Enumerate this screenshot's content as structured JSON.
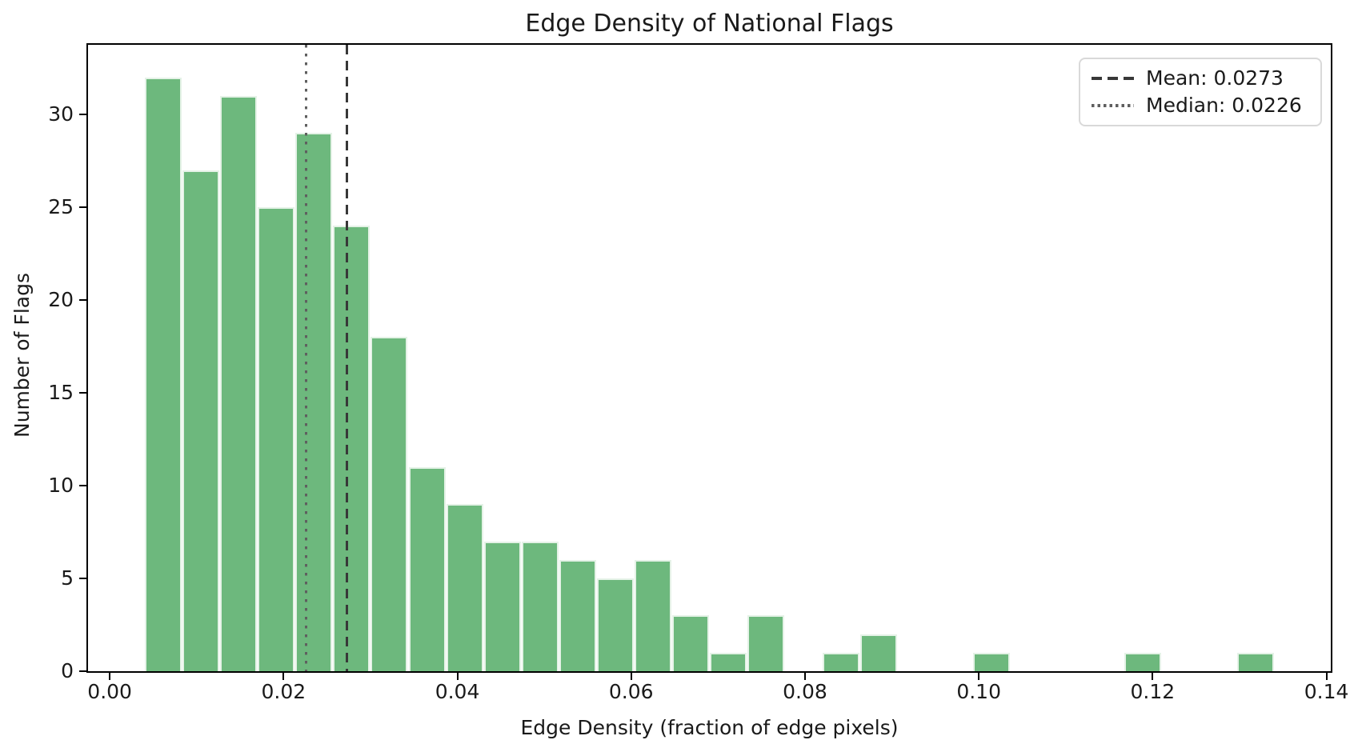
{
  "chart_data": {
    "type": "bar",
    "subtype": "histogram",
    "title": "Edge Density of National Flags",
    "xlabel": "Edge Density (fraction of edge pixels)",
    "ylabel": "Number of Flags",
    "bin_start": 0.004,
    "bin_width": 0.0043333,
    "counts": [
      32,
      27,
      31,
      25,
      29,
      24,
      18,
      11,
      9,
      7,
      7,
      6,
      5,
      6,
      3,
      1,
      3,
      0,
      1,
      2,
      0,
      0,
      1,
      0,
      0,
      0,
      1,
      0,
      0,
      1
    ],
    "xlim": [
      -0.0025,
      0.1405
    ],
    "ylim": [
      0,
      33.75
    ],
    "xtick_values": [
      0.0,
      0.02,
      0.04,
      0.06,
      0.08,
      0.1,
      0.12,
      0.14
    ],
    "xtick_labels": [
      "0.00",
      "0.02",
      "0.04",
      "0.06",
      "0.08",
      "0.10",
      "0.12",
      "0.14"
    ],
    "ytick_values": [
      0,
      5,
      10,
      15,
      20,
      25,
      30
    ],
    "ytick_labels": [
      "0",
      "5",
      "10",
      "15",
      "20",
      "25",
      "30"
    ],
    "grid": false,
    "legend_position": "upper right",
    "mean": {
      "value": 0.0273,
      "label": "Mean: 0.0273",
      "line_style": "dashed"
    },
    "median": {
      "value": 0.0226,
      "label": "Median: 0.0226",
      "line_style": "dotted"
    },
    "colors": {
      "bar_fill": "#6db87d",
      "bar_edge": "#ffffff",
      "mean_line": "#383838",
      "median_line": "#5f5f5f",
      "text": "#1a1a1a",
      "spine": "#000000",
      "legend_border": "#d9d9d9",
      "background": "#ffffff"
    }
  }
}
